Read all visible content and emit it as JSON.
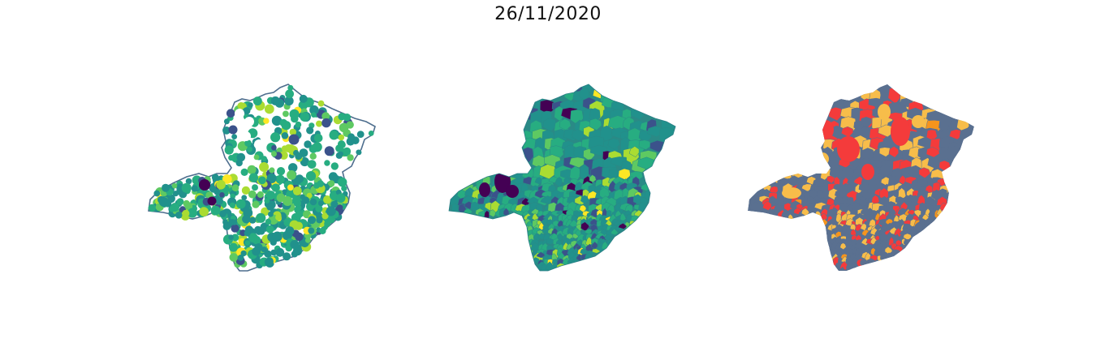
{
  "title": "26/11/2020",
  "colors": {
    "outline": "#4e6e8e",
    "panel3_base": "#5a7090",
    "panel3_mid": "#f7bd4a",
    "panel3_high": "#f43b3b",
    "panel3_orange": "#f6941c",
    "viridis": [
      "#440154",
      "#3b528b",
      "#21918c",
      "#27ad81",
      "#5ec962",
      "#aadc32",
      "#fde725"
    ]
  },
  "panels": [
    {
      "name": "points-map",
      "style": "bubbles-on-outline"
    },
    {
      "name": "choropleth-continuous",
      "style": "viridis"
    },
    {
      "name": "choropleth-categorical",
      "style": "three-class"
    }
  ]
}
